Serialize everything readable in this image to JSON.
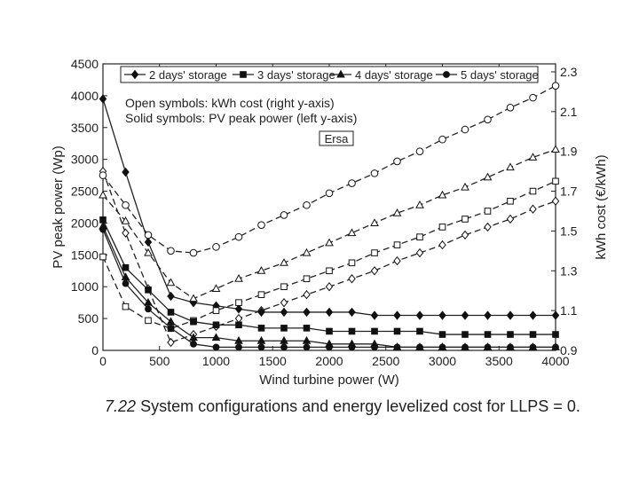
{
  "chart_data": {
    "type": "line",
    "x": [
      0,
      200,
      400,
      600,
      800,
      1000,
      1200,
      1400,
      1600,
      1800,
      2000,
      2200,
      2400,
      2600,
      2800,
      3000,
      3200,
      3400,
      3600,
      3800,
      4000
    ],
    "xlabel": "Wind turbine power (W)",
    "ylabel_left": "PV peak power (Wp)",
    "ylabel_right": "kWh cost (€/kWh)",
    "xlim": [
      0,
      4000
    ],
    "xticks": [
      0,
      500,
      1000,
      1500,
      2000,
      2500,
      3000,
      3500,
      4000
    ],
    "ylim_left": [
      0,
      4500
    ],
    "yticks_left": [
      0,
      500,
      1000,
      1500,
      2000,
      2500,
      3000,
      3500,
      4000,
      4500
    ],
    "ylim_right": [
      0.9,
      2.34
    ],
    "yticks_right": [
      0.9,
      1.1,
      1.3,
      1.5,
      1.7,
      1.9,
      2.1,
      2.3
    ],
    "grid": false,
    "legend_position": "top",
    "annotations": [
      "Open symbols: kWh cost (right y-axis)",
      "Solid symbols: PV peak power (left y-axis)"
    ],
    "boxed_label": "Ersa",
    "series": [
      {
        "name": "2 days' storage",
        "marker": "diamond",
        "pv": [
          3950,
          2800,
          1700,
          850,
          750,
          700,
          650,
          600,
          600,
          600,
          600,
          600,
          550,
          550,
          550,
          550,
          550,
          550,
          550,
          550,
          550
        ],
        "cost": [
          1.8,
          1.49,
          1.21,
          0.94,
          0.98,
          1.02,
          1.06,
          1.1,
          1.14,
          1.18,
          1.22,
          1.26,
          1.3,
          1.35,
          1.39,
          1.43,
          1.48,
          1.52,
          1.56,
          1.61,
          1.65
        ]
      },
      {
        "name": "3 days' storage",
        "marker": "square",
        "pv": [
          2050,
          1300,
          950,
          600,
          450,
          400,
          400,
          350,
          350,
          350,
          300,
          300,
          300,
          300,
          300,
          250,
          250,
          250,
          250,
          250,
          250
        ],
        "cost": [
          1.37,
          1.12,
          1.05,
          1.01,
          1.05,
          1.1,
          1.14,
          1.18,
          1.22,
          1.26,
          1.3,
          1.34,
          1.39,
          1.43,
          1.47,
          1.52,
          1.56,
          1.6,
          1.65,
          1.7,
          1.75
        ]
      },
      {
        "name": "4 days' storage",
        "marker": "triangle",
        "pv": [
          1950,
          1150,
          750,
          450,
          200,
          200,
          150,
          150,
          150,
          150,
          100,
          100,
          100,
          50,
          50,
          50,
          50,
          50,
          50,
          50,
          50
        ],
        "cost": [
          1.68,
          1.55,
          1.39,
          1.24,
          1.16,
          1.21,
          1.26,
          1.3,
          1.34,
          1.39,
          1.44,
          1.49,
          1.54,
          1.59,
          1.63,
          1.68,
          1.72,
          1.77,
          1.82,
          1.87,
          1.91
        ]
      },
      {
        "name": "5 days' storage",
        "marker": "circle",
        "pv": [
          1900,
          1050,
          650,
          350,
          100,
          50,
          50,
          50,
          50,
          50,
          50,
          50,
          50,
          50,
          50,
          50,
          50,
          50,
          50,
          50,
          50
        ],
        "cost": [
          1.78,
          1.63,
          1.48,
          1.4,
          1.39,
          1.42,
          1.47,
          1.53,
          1.58,
          1.63,
          1.69,
          1.74,
          1.79,
          1.85,
          1.9,
          1.96,
          2.01,
          2.06,
          2.12,
          2.17,
          2.23
        ]
      }
    ]
  },
  "caption": {
    "number": "7.22",
    "text": "System configurations and energy levelized cost for LLPS = 0."
  }
}
